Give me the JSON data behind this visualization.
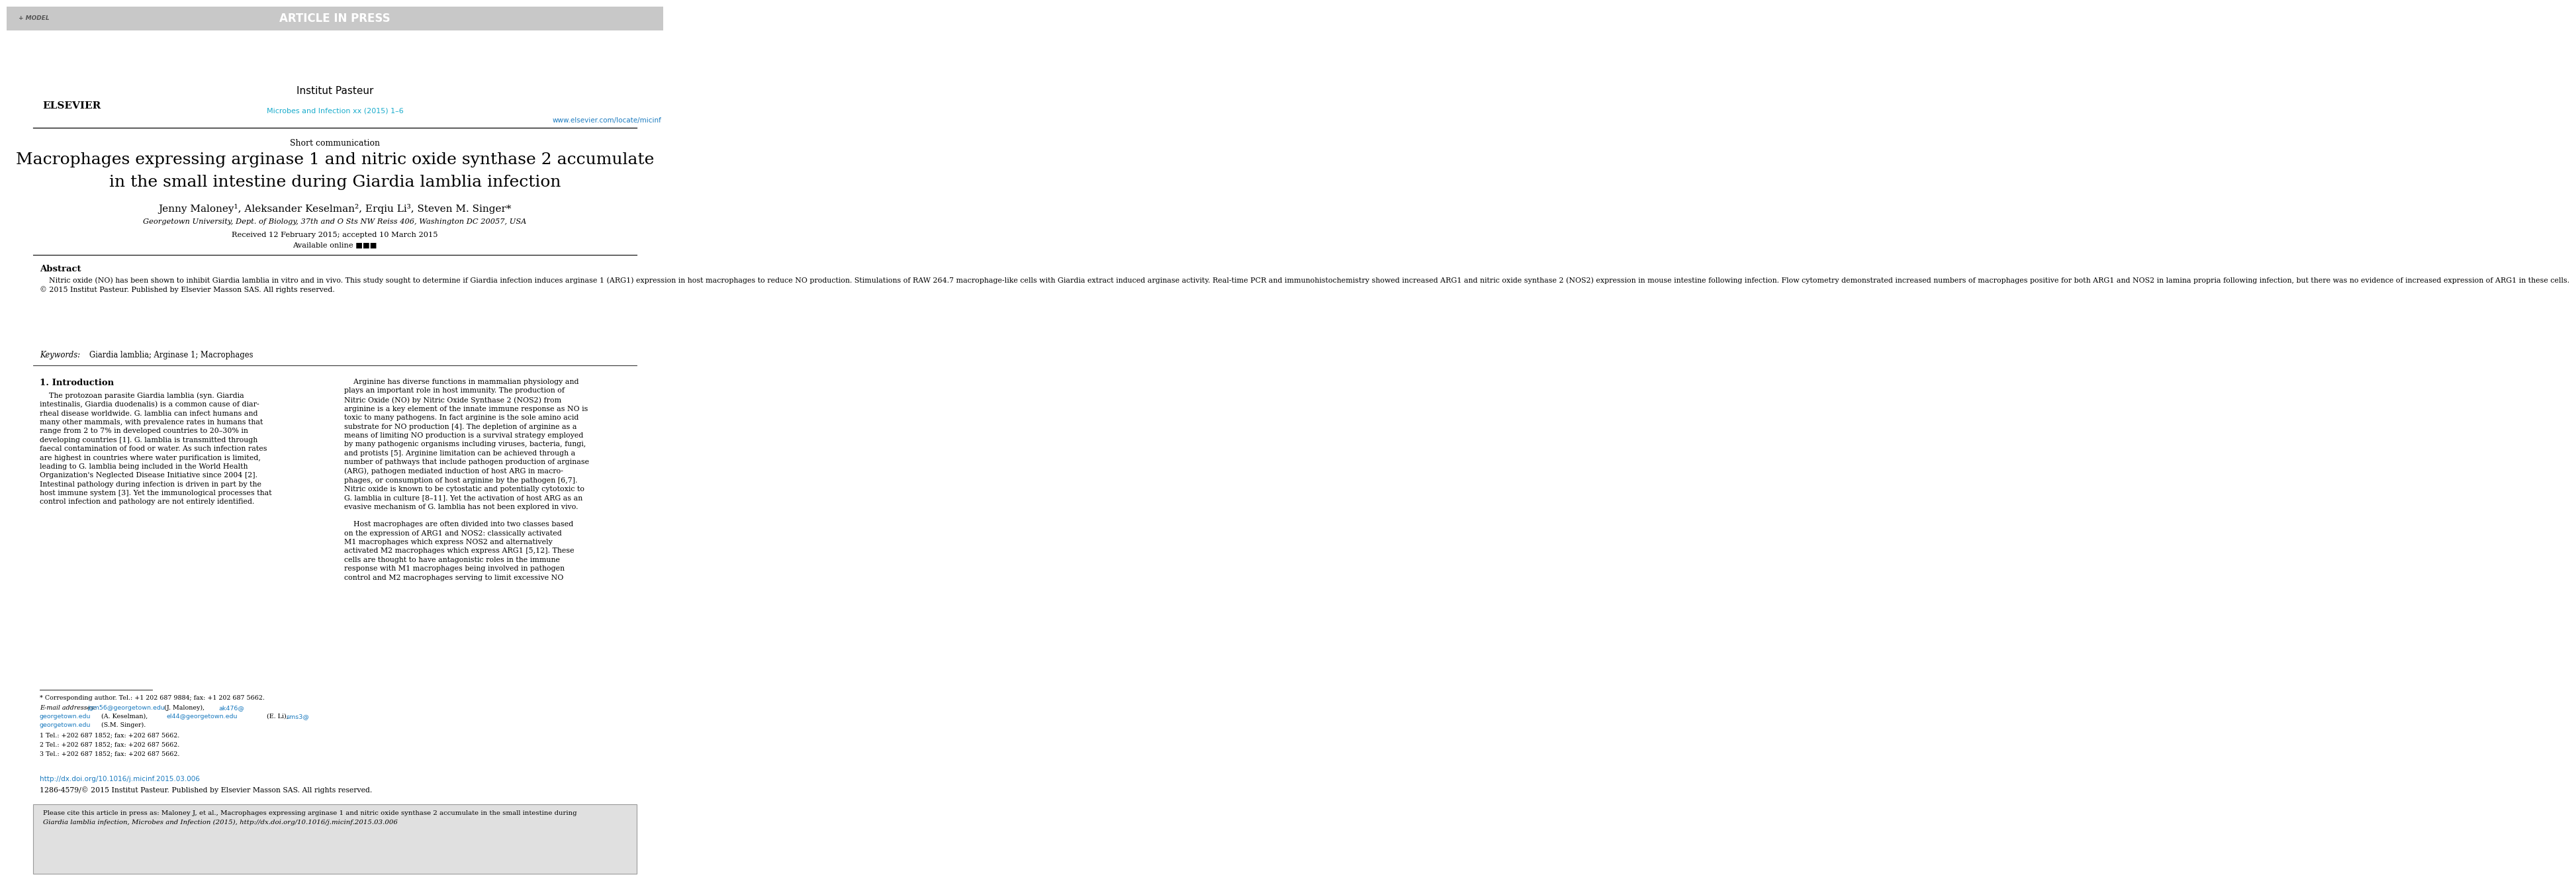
{
  "bg_color": "#ffffff",
  "header_bar_color": "#c8c8c8",
  "header_bar_text": "ARTICLE IN PRESS",
  "header_model_text": "+ MODEL",
  "journal_name": "Microbes and Infection xx (2015) 1–6",
  "journal_url": "www.elsevier.com/locate/micinf",
  "journal_color": "#1aaccc",
  "section_label": "Short communication",
  "title_line1": "Macrophages expressing arginase 1 and nitric oxide synthase 2 accumulate",
  "title_line2_before_italic": "in the small intestine during ",
  "title_line2_italic": "Giardia lamblia",
  "title_line2_after_italic": " infection",
  "authors": "Jenny Maloney¹, Aleksander Keselman², Erqiu Li³, Steven M. Singer*",
  "affiliation": "Georgetown University, Dept. of Biology, 37th and O Sts NW Reiss 406, Washington DC 20057, USA",
  "received": "Received 12 February 2015; accepted 10 March 2015",
  "available": "Available online ■■■",
  "abstract_title": "Abstract",
  "abstract_body": "    Nitric oxide (NO) has been shown to inhibit Giardia lamblia in vitro and in vivo. This study sought to determine if Giardia infection induces arginase 1 (ARG1) expression in host macrophages to reduce NO production. Stimulations of RAW 264.7 macrophage-like cells with Giardia extract induced arginase activity. Real-time PCR and immunohistochemistry showed increased ARG1 and nitric oxide synthase 2 (NOS2) expression in mouse intestine following infection. Flow cytometry demonstrated increased numbers of macrophages positive for both ARG1 and NOS2 in lamina propria following infection, but there was no evidence of increased expression of ARG1 in these cells.\n© 2015 Institut Pasteur. Published by Elsevier Masson SAS. All rights reserved.",
  "keywords_label": "Keywords:",
  "keywords_text": "Giardia lamblia; Arginase 1; Macrophages",
  "intro_title": "1. Introduction",
  "col1_text": "    The protozoan parasite Giardia lamblia (syn. Giardia\nintestinalis, Giardia duodenalis) is a common cause of diar-\nrheal disease worldwide. G. lamblia can infect humans and\nmany other mammals, with prevalence rates in humans that\nrange from 2 to 7% in developed countries to 20–30% in\ndeveloping countries [1]. G. lamblia is transmitted through\nfaecal contamination of food or water. As such infection rates\nare highest in countries where water purification is limited,\nleading to G. lamblia being included in the World Health\nOrganization's Neglected Disease Initiative since 2004 [2].\nIntestinal pathology during infection is driven in part by the\nhost immune system [3]. Yet the immunological processes that\ncontrol infection and pathology are not entirely identified.",
  "col2_text": "    Arginine has diverse functions in mammalian physiology and\nplays an important role in host immunity. The production of\nNitric Oxide (NO) by Nitric Oxide Synthase 2 (NOS2) from\narginine is a key element of the innate immune response as NO is\ntoxic to many pathogens. In fact arginine is the sole amino acid\nsubstrate for NO production [4]. The depletion of arginine as a\nmeans of limiting NO production is a survival strategy employed\nby many pathogenic organisms including viruses, bacteria, fungi,\nand protists [5]. Arginine limitation can be achieved through a\nnumber of pathways that include pathogen production of arginase\n(ARG), pathogen mediated induction of host ARG in macro-\nphages, or consumption of host arginine by the pathogen [6,7].\nNitric oxide is known to be cytostatic and potentially cytotoxic to\nG. lamblia in culture [8–11]. Yet the activation of host ARG as an\nevasive mechanism of G. lamblia has not been explored in vivo.\n\n    Host macrophages are often divided into two classes based\non the expression of ARG1 and NOS2: classically activated\nM1 macrophages which express NOS2 and alternatively\nactivated M2 macrophages which express ARG1 [5,12]. These\ncells are thought to have antagonistic roles in the immune\nresponse with M1 macrophages being involved in pathogen\ncontrol and M2 macrophages serving to limit excessive NO",
  "fn_star": "* Corresponding author. Tel.: +1 202 687 9884; fax: +1 202 687 5662.",
  "fn_email_label": "E-mail addresses:",
  "fn_email1": "jgm56@georgetown.edu",
  "fn_after1": " (J. Maloney),",
  "fn_email2": "ak476@",
  "fn_email2b": "georgetown.edu",
  "fn_after2": " (A. Keselman),",
  "fn_email3": "el44@georgetown.edu",
  "fn_after3": " (E. Li),",
  "fn_email4": "sms3@",
  "fn_email4b": "georgetown.edu",
  "fn_after4": " (S.M. Singer).",
  "fn_1": "1 Tel.: +202 687 1852; fax: +202 687 5662.",
  "fn_2": "2 Tel.: +202 687 1852; fax: +202 687 5662.",
  "fn_3": "3 Tel.: +202 687 1852; fax: +202 687 5662.",
  "doi": "http://dx.doi.org/10.1016/j.micinf.2015.03.006",
  "issn": "1286-4579/© 2015 Institut Pasteur. Published by Elsevier Masson SAS. All rights reserved.",
  "cite_text_line1": "Please cite this article in press as: Maloney J, et al., Macrophages expressing arginase 1 and nitric oxide synthase 2 accumulate in the small intestine during",
  "cite_text_line2": "Giardia lamblia infection, Microbes and Infection (2015), http://dx.doi.org/10.1016/j.micinf.2015.03.006",
  "link_color": "#1a7abf",
  "cite_box_bg": "#e0e0e0",
  "cite_box_border": "#999999"
}
